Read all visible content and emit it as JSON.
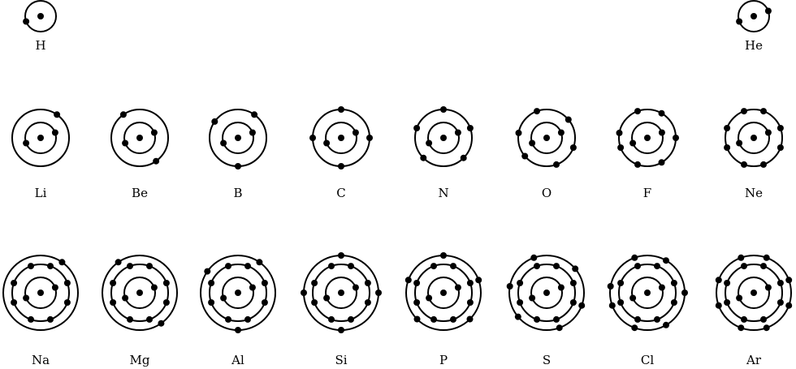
{
  "atoms": [
    {
      "symbol": "H",
      "shells": [
        1
      ]
    },
    {
      "symbol": "He",
      "shells": [
        2
      ]
    },
    {
      "symbol": "Li",
      "shells": [
        2,
        1
      ]
    },
    {
      "symbol": "Be",
      "shells": [
        2,
        2
      ]
    },
    {
      "symbol": "B",
      "shells": [
        2,
        3
      ]
    },
    {
      "symbol": "C",
      "shells": [
        2,
        4
      ]
    },
    {
      "symbol": "N",
      "shells": [
        2,
        5
      ]
    },
    {
      "symbol": "O",
      "shells": [
        2,
        6
      ]
    },
    {
      "symbol": "F",
      "shells": [
        2,
        7
      ]
    },
    {
      "symbol": "Ne",
      "shells": [
        2,
        8
      ]
    },
    {
      "symbol": "Na",
      "shells": [
        2,
        8,
        1
      ]
    },
    {
      "symbol": "Mg",
      "shells": [
        2,
        8,
        2
      ]
    },
    {
      "symbol": "Al",
      "shells": [
        2,
        8,
        3
      ]
    },
    {
      "symbol": "Si",
      "shells": [
        2,
        8,
        4
      ]
    },
    {
      "symbol": "P",
      "shells": [
        2,
        8,
        5
      ]
    },
    {
      "symbol": "S",
      "shells": [
        2,
        8,
        6
      ]
    },
    {
      "symbol": "Cl",
      "shells": [
        2,
        8,
        7
      ]
    },
    {
      "symbol": "Ar",
      "shells": [
        2,
        8,
        8
      ]
    }
  ]
}
